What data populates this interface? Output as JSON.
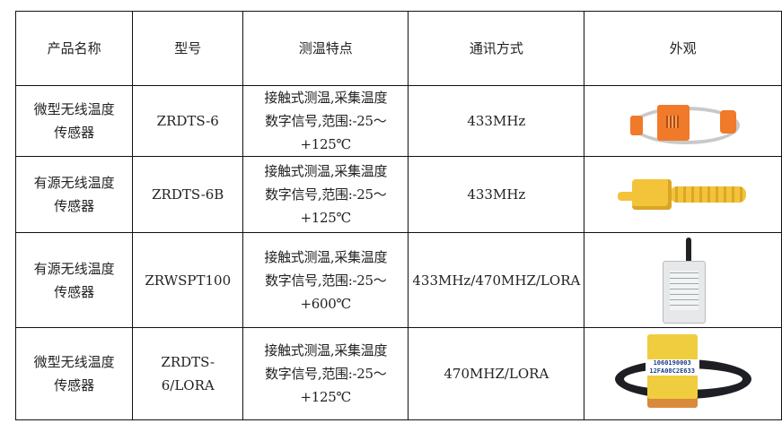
{
  "headers": [
    "产品名称",
    "型号",
    "测温特点",
    "通讯方式",
    "外观"
  ],
  "rows": [
    {
      "name_l1": "微型无线温度",
      "name_l2": "传感器",
      "model": "ZRDTS-6",
      "feat_l1": "接触式测温,采集温度",
      "feat_l2": "数字信号,范围:-25～",
      "feat_l3": "+125℃",
      "comm": "433MHz",
      "photo": "orange-ring-sensor"
    },
    {
      "name_l1": "有源无线温度",
      "name_l2": "传感器",
      "model": "ZRDTS-6B",
      "feat_l1": "接触式测温,采集温度",
      "feat_l2": "数字信号,范围:-25～",
      "feat_l3": "+125℃",
      "comm": "433MHz",
      "photo": "yellow-strap-sensor"
    },
    {
      "name_l1": "有源无线温度",
      "name_l2": "传感器",
      "model": "ZRWSPT100",
      "feat_l1": "接触式测温,采集温度",
      "feat_l2": "数字信号,范围:-25～",
      "feat_l3": "+600℃",
      "comm": "433MHz/470MHZ/LORA",
      "photo": "antenna-box-sensor"
    },
    {
      "name_l1": "微型无线温度",
      "name_l2": "传感器",
      "model": "ZRDTS-6/LORA",
      "feat_l1": "接触式测温,采集温度",
      "feat_l2": "数字信号,范围:-25～",
      "feat_l3": "+125℃",
      "comm": "470MHZ/LORA",
      "photo": "black-band-sensor",
      "photo_label_l1": "1060190003",
      "photo_label_l2": "12FA08C2E633"
    }
  ]
}
